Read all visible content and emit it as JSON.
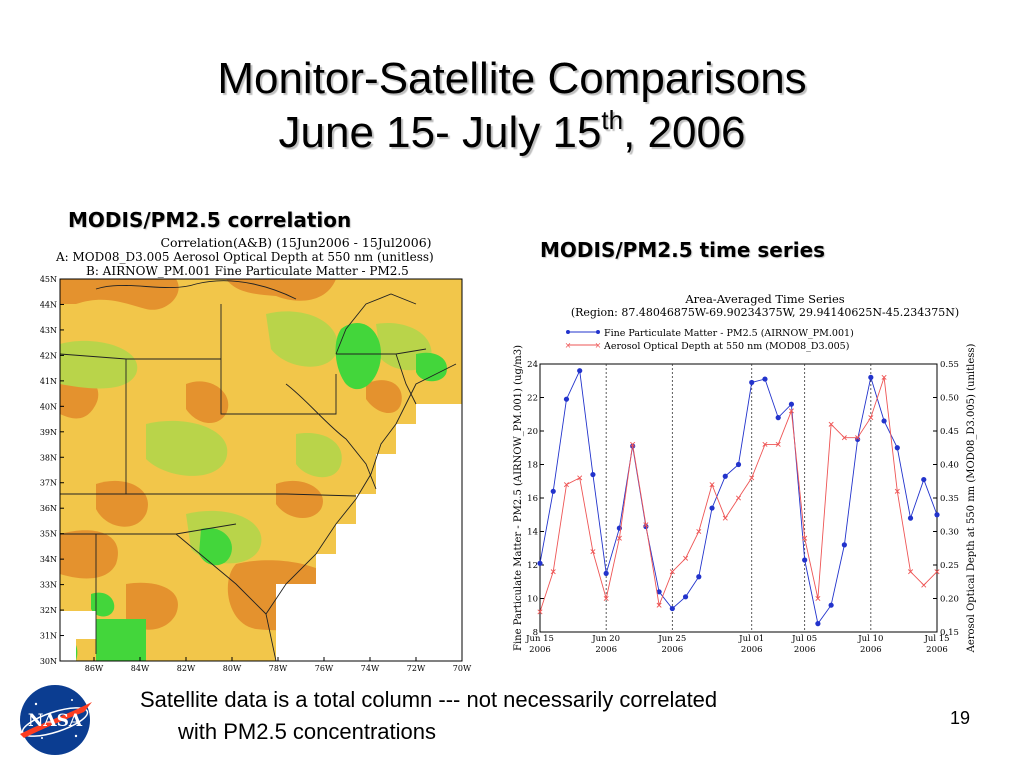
{
  "slide": {
    "title_line1": "Monitor-Satellite Comparisons",
    "title_line2_a": "June 15- July 15",
    "title_line2_sup": "th",
    "title_line2_b": ", 2006",
    "caption_line1": "Satellite data  is a total column --- not necessarily correlated",
    "caption_line2": "with PM2.5 concentrations",
    "page_number": "19",
    "logo_text": "NASA"
  },
  "map_panel": {
    "heading": "MODIS/PM2.5 correlation",
    "header_line1": "Correlation(A&B) (15Jun2006 - 15Jul2006)",
    "header_line2": "A: MOD08_D3.005 Aerosol Optical Depth at 550 nm (unitless)",
    "header_line3": "B: AIRNOW_PM.001 Fine Particulate Matter - PM2.5",
    "lat_labels": [
      "45N",
      "44N",
      "43N",
      "42N",
      "41N",
      "40N",
      "39N",
      "38N",
      "37N",
      "36N",
      "35N",
      "34N",
      "33N",
      "32N",
      "31N",
      "30N"
    ],
    "lon_labels": [
      "86W",
      "84W",
      "82W",
      "80W",
      "78W",
      "76W",
      "74W",
      "72W",
      "70W"
    ],
    "colors": {
      "low": "#e4922e",
      "mid": "#f2c64a",
      "olive": "#b9d44a",
      "high": "#43d63b",
      "none": "#ffffff"
    }
  },
  "timeseries_panel": {
    "heading": "MODIS/PM2.5 time series"
  },
  "chart_data": {
    "type": "line",
    "title": "Area-Averaged Time Series",
    "subtitle": "(Region: 87.48046875W-69.90234375W, 29.94140625N-45.234375N)",
    "ylabel": "Fine Particulate Matter - PM2.5 (AIRNOW_PM.001) (ug/m3)",
    "y2label": "Aerosol Optical Depth at 550 nm (MOD08_D3.005) (unitless)",
    "ylim": [
      8,
      24
    ],
    "y2lim": [
      0.15,
      0.55
    ],
    "yticks": [
      8,
      10,
      12,
      14,
      16,
      18,
      20,
      22,
      24
    ],
    "y2ticks": [
      "0.15",
      "0.20",
      "0.25",
      "0.30",
      "0.35",
      "0.40",
      "0.45",
      "0.50",
      "0.55"
    ],
    "xlim": [
      "2006-06-15",
      "2006-07-15"
    ],
    "xticks": [
      {
        "date": "2006-06-15",
        "label1": "Jun 15",
        "label2": "2006"
      },
      {
        "date": "2006-06-20",
        "label1": "Jun 20",
        "label2": "2006"
      },
      {
        "date": "2006-06-25",
        "label1": "Jun 25",
        "label2": "2006"
      },
      {
        "date": "2006-07-01",
        "label1": "Jul 01",
        "label2": "2006"
      },
      {
        "date": "2006-07-05",
        "label1": "Jul 05",
        "label2": "2006"
      },
      {
        "date": "2006-07-10",
        "label1": "Jul 10",
        "label2": "2006"
      },
      {
        "date": "2006-07-15",
        "label1": "Jul 15",
        "label2": "2006"
      }
    ],
    "legend_position": "top-left",
    "grid": "dotted vertical lines at date ticks",
    "series": [
      {
        "name": "Fine Particulate Matter - PM2.5 (AIRNOW_PM.001)",
        "axis": "left",
        "color": "#2233cc",
        "marker": "dot",
        "x": [
          "2006-06-15",
          "2006-06-16",
          "2006-06-17",
          "2006-06-18",
          "2006-06-19",
          "2006-06-20",
          "2006-06-21",
          "2006-06-22",
          "2006-06-23",
          "2006-06-24",
          "2006-06-25",
          "2006-06-26",
          "2006-06-27",
          "2006-06-28",
          "2006-06-29",
          "2006-06-30",
          "2006-07-01",
          "2006-07-02",
          "2006-07-03",
          "2006-07-04",
          "2006-07-05",
          "2006-07-06",
          "2006-07-07",
          "2006-07-08",
          "2006-07-09",
          "2006-07-10",
          "2006-07-11",
          "2006-07-12",
          "2006-07-13",
          "2006-07-14",
          "2006-07-15"
        ],
        "values": [
          12.1,
          16.4,
          21.9,
          23.6,
          17.4,
          11.5,
          14.2,
          19.1,
          14.3,
          10.4,
          9.4,
          10.1,
          11.3,
          15.4,
          17.3,
          18.0,
          22.9,
          23.1,
          20.8,
          21.6,
          12.3,
          8.5,
          9.6,
          13.2,
          19.5,
          23.2,
          20.6,
          19.0,
          14.8,
          17.1,
          15.0
        ]
      },
      {
        "name": "Aerosol Optical Depth at 550 nm (MOD08_D3.005)",
        "axis": "right",
        "color": "#ee5555",
        "marker": "x",
        "x": [
          "2006-06-15",
          "2006-06-16",
          "2006-06-17",
          "2006-06-18",
          "2006-06-19",
          "2006-06-20",
          "2006-06-21",
          "2006-06-22",
          "2006-06-23",
          "2006-06-24",
          "2006-06-25",
          "2006-06-26",
          "2006-06-27",
          "2006-06-28",
          "2006-06-29",
          "2006-06-30",
          "2006-07-01",
          "2006-07-02",
          "2006-07-03",
          "2006-07-04",
          "2006-07-05",
          "2006-07-06",
          "2006-07-07",
          "2006-07-08",
          "2006-07-09",
          "2006-07-10",
          "2006-07-11",
          "2006-07-12",
          "2006-07-13",
          "2006-07-14",
          "2006-07-15"
        ],
        "values": [
          0.18,
          0.24,
          0.37,
          0.38,
          0.27,
          0.2,
          0.29,
          0.43,
          0.31,
          0.19,
          0.24,
          0.26,
          0.3,
          0.37,
          0.32,
          0.35,
          0.38,
          0.43,
          0.43,
          0.48,
          0.29,
          0.2,
          0.46,
          0.44,
          0.44,
          0.47,
          0.53,
          0.36,
          0.24,
          0.22,
          0.24
        ]
      }
    ]
  }
}
